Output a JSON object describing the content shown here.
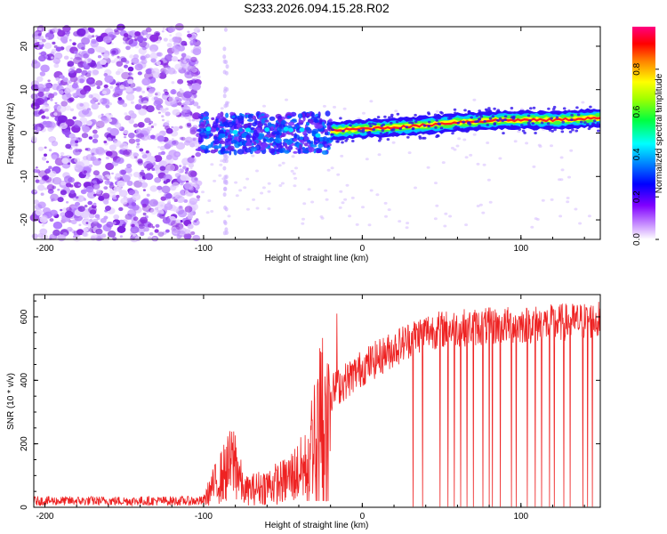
{
  "title": "S233.2026.094.15.28.R02",
  "colors": {
    "snr_line": "#ee2222",
    "axis": "#000000",
    "background": "#ffffff"
  },
  "chart_data": [
    {
      "type": "heatmap",
      "name": "spectrogram",
      "xlabel": "Height of straight line (km)",
      "ylabel": "Frequency (Hz)",
      "xlim": [
        -207,
        150
      ],
      "ylim": [
        -24.5,
        24.5
      ],
      "xticks": [
        -200,
        -100,
        0,
        100
      ],
      "yticks": [
        -20,
        -10,
        0,
        10,
        20
      ],
      "colorbar": {
        "label": "Normalized spectral amplitude",
        "range": [
          0,
          1
        ],
        "ticks": [
          0.0,
          0.2,
          0.4,
          0.6,
          0.8
        ],
        "tick_labels": [
          "0.0",
          "0.2",
          "0.4",
          "0.6",
          "0.8"
        ],
        "colormap": [
          "#ffffff",
          "#8a2be2",
          "#0000ff",
          "#00ffff",
          "#00ff00",
          "#ffff00",
          "#ff0000",
          "#ff00ff"
        ]
      },
      "regions": [
        {
          "description": "noise",
          "x": [
            -207,
            -103
          ],
          "freq": [
            -24.5,
            24.5
          ],
          "amplitude": 0.05
        },
        {
          "description": "onset",
          "x": [
            -103,
            -20
          ],
          "freq": [
            -5,
            5
          ],
          "amplitude": 0.15
        },
        {
          "description": "tone",
          "x": [
            -20,
            150
          ],
          "freq": [
            0.5,
            3.5
          ],
          "amplitude": 0.85
        }
      ],
      "tone_track": [
        [
          -20,
          0.5
        ],
        [
          0,
          1
        ],
        [
          30,
          1.5
        ],
        [
          60,
          2.5
        ],
        [
          90,
          3
        ],
        [
          120,
          3
        ],
        [
          150,
          3.5
        ]
      ]
    },
    {
      "type": "line",
      "name": "snr",
      "xlabel": "Height of straight line (km)",
      "ylabel": "SNR (10 * v/v)",
      "xlim": [
        -207,
        150
      ],
      "ylim": [
        0,
        670
      ],
      "xticks": [
        -200,
        -100,
        0,
        100
      ],
      "yticks": [
        0,
        200,
        400,
        600
      ],
      "series": [
        {
          "name": "SNR",
          "profile_x": [
            -207,
            -100,
            -95,
            -80,
            -75,
            -50,
            -35,
            -30,
            -25,
            -20,
            -10,
            0,
            10,
            20,
            30,
            40,
            60,
            80,
            100,
            120,
            150
          ],
          "profile_y": [
            20,
            20,
            60,
            150,
            50,
            80,
            130,
            250,
            300,
            360,
            400,
            440,
            470,
            500,
            530,
            555,
            565,
            570,
            575,
            580,
            590
          ],
          "dropouts_x": [
            32,
            38,
            49,
            54,
            58,
            62,
            66,
            70,
            76,
            80,
            82,
            87,
            94,
            97,
            104,
            109,
            113,
            118,
            121,
            127,
            131,
            139,
            142,
            145
          ],
          "peak": {
            "x": -16,
            "y": 610
          }
        }
      ]
    }
  ]
}
